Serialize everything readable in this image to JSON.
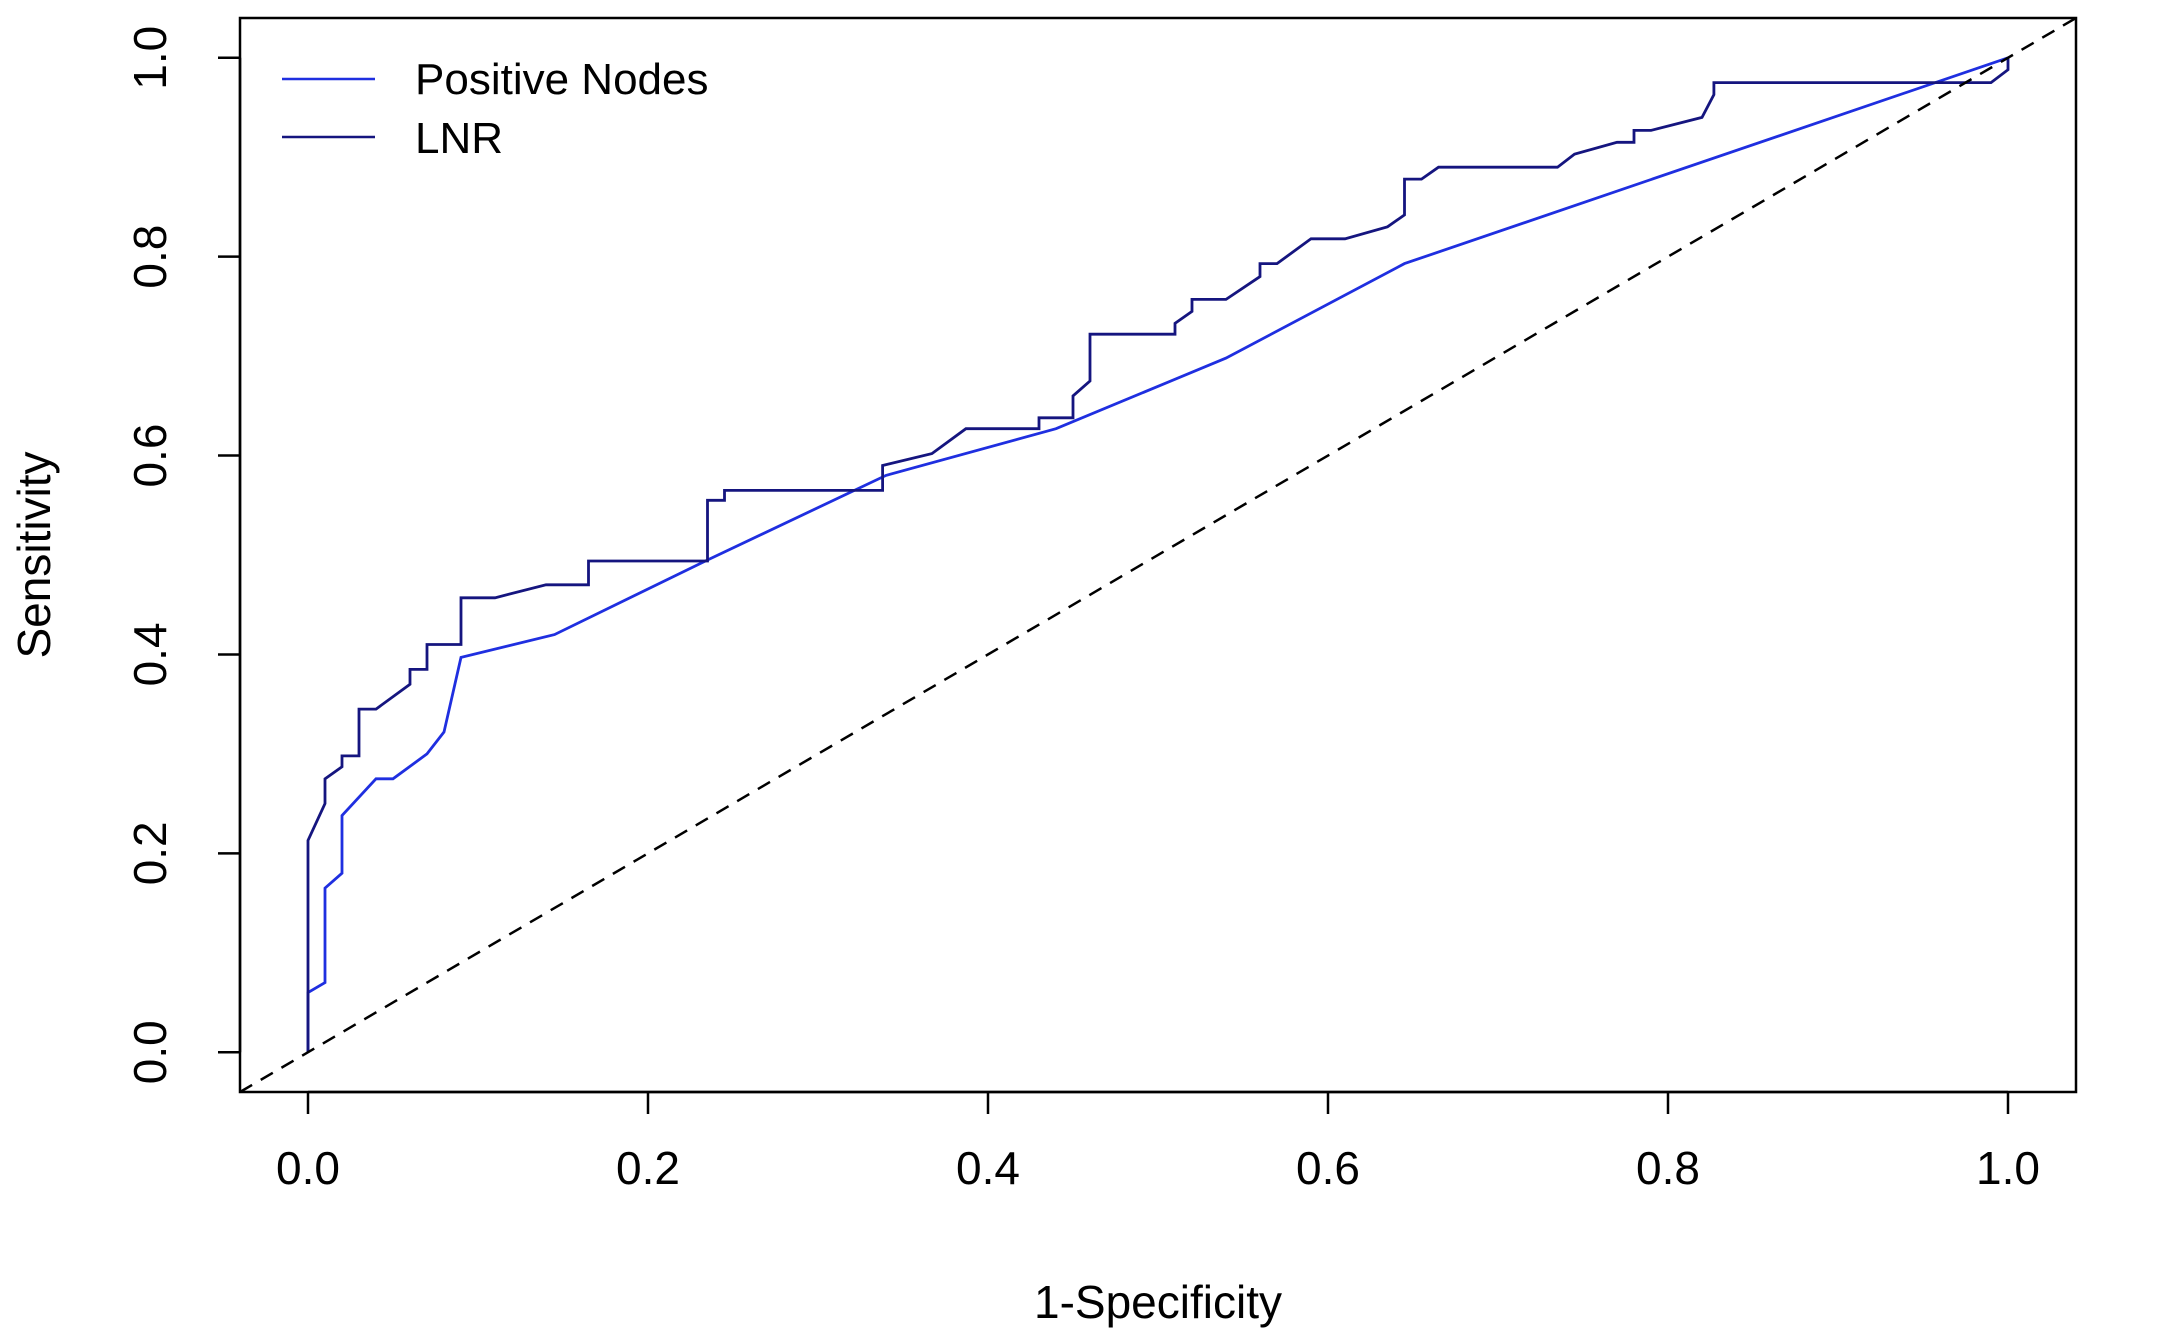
{
  "chart_data": {
    "type": "line",
    "xlabel": "1-Specificity",
    "ylabel": "Sensitivity",
    "xlim": [
      -0.04,
      1.04
    ],
    "ylim": [
      -0.04,
      1.04
    ],
    "xticks": [
      0.0,
      0.2,
      0.4,
      0.6,
      0.8,
      1.0
    ],
    "yticks": [
      0.0,
      0.2,
      0.4,
      0.6,
      0.8,
      1.0
    ],
    "xtick_labels": [
      "0.0",
      "0.2",
      "0.4",
      "0.6",
      "0.8",
      "1.0"
    ],
    "ytick_labels": [
      "0.0",
      "0.2",
      "0.4",
      "0.6",
      "0.8",
      "1.0"
    ],
    "legend_position": "top-left",
    "grid": false,
    "series": [
      {
        "name": "Positive Nodes",
        "color": "#1f2fe0",
        "points": [
          [
            0.0,
            0.0
          ],
          [
            0.0,
            0.06
          ],
          [
            0.01,
            0.07
          ],
          [
            0.01,
            0.165
          ],
          [
            0.02,
            0.18
          ],
          [
            0.02,
            0.238
          ],
          [
            0.04,
            0.275
          ],
          [
            0.05,
            0.275
          ],
          [
            0.07,
            0.3
          ],
          [
            0.08,
            0.322
          ],
          [
            0.09,
            0.397
          ],
          [
            0.145,
            0.42
          ],
          [
            0.235,
            0.495
          ],
          [
            0.34,
            0.58
          ],
          [
            0.44,
            0.627
          ],
          [
            0.54,
            0.698
          ],
          [
            0.645,
            0.793
          ],
          [
            1.0,
            1.0
          ]
        ]
      },
      {
        "name": "LNR",
        "color": "#15157f",
        "points": [
          [
            0.0,
            0.0
          ],
          [
            0.0,
            0.213
          ],
          [
            0.01,
            0.25
          ],
          [
            0.01,
            0.275
          ],
          [
            0.02,
            0.287
          ],
          [
            0.02,
            0.298
          ],
          [
            0.03,
            0.298
          ],
          [
            0.03,
            0.345
          ],
          [
            0.04,
            0.345
          ],
          [
            0.06,
            0.37
          ],
          [
            0.06,
            0.385
          ],
          [
            0.07,
            0.385
          ],
          [
            0.07,
            0.41
          ],
          [
            0.09,
            0.41
          ],
          [
            0.09,
            0.457
          ],
          [
            0.11,
            0.457
          ],
          [
            0.14,
            0.47
          ],
          [
            0.165,
            0.47
          ],
          [
            0.165,
            0.494
          ],
          [
            0.235,
            0.494
          ],
          [
            0.235,
            0.555
          ],
          [
            0.245,
            0.555
          ],
          [
            0.245,
            0.565
          ],
          [
            0.338,
            0.565
          ],
          [
            0.338,
            0.59
          ],
          [
            0.367,
            0.602
          ],
          [
            0.387,
            0.627
          ],
          [
            0.43,
            0.627
          ],
          [
            0.43,
            0.638
          ],
          [
            0.45,
            0.638
          ],
          [
            0.45,
            0.66
          ],
          [
            0.46,
            0.675
          ],
          [
            0.46,
            0.722
          ],
          [
            0.51,
            0.722
          ],
          [
            0.51,
            0.733
          ],
          [
            0.52,
            0.745
          ],
          [
            0.52,
            0.757
          ],
          [
            0.54,
            0.757
          ],
          [
            0.56,
            0.78
          ],
          [
            0.56,
            0.793
          ],
          [
            0.57,
            0.793
          ],
          [
            0.59,
            0.818
          ],
          [
            0.61,
            0.818
          ],
          [
            0.635,
            0.83
          ],
          [
            0.645,
            0.842
          ],
          [
            0.645,
            0.878
          ],
          [
            0.655,
            0.878
          ],
          [
            0.665,
            0.89
          ],
          [
            0.735,
            0.89
          ],
          [
            0.745,
            0.903
          ],
          [
            0.77,
            0.915
          ],
          [
            0.78,
            0.915
          ],
          [
            0.78,
            0.927
          ],
          [
            0.79,
            0.927
          ],
          [
            0.82,
            0.94
          ],
          [
            0.827,
            0.963
          ],
          [
            0.827,
            0.975
          ],
          [
            0.99,
            0.975
          ],
          [
            1.0,
            0.988
          ],
          [
            1.0,
            1.0
          ]
        ]
      },
      {
        "name": "",
        "color": "#000000",
        "dashed": true,
        "points": [
          [
            -0.04,
            -0.04
          ],
          [
            1.04,
            1.04
          ]
        ]
      }
    ]
  }
}
